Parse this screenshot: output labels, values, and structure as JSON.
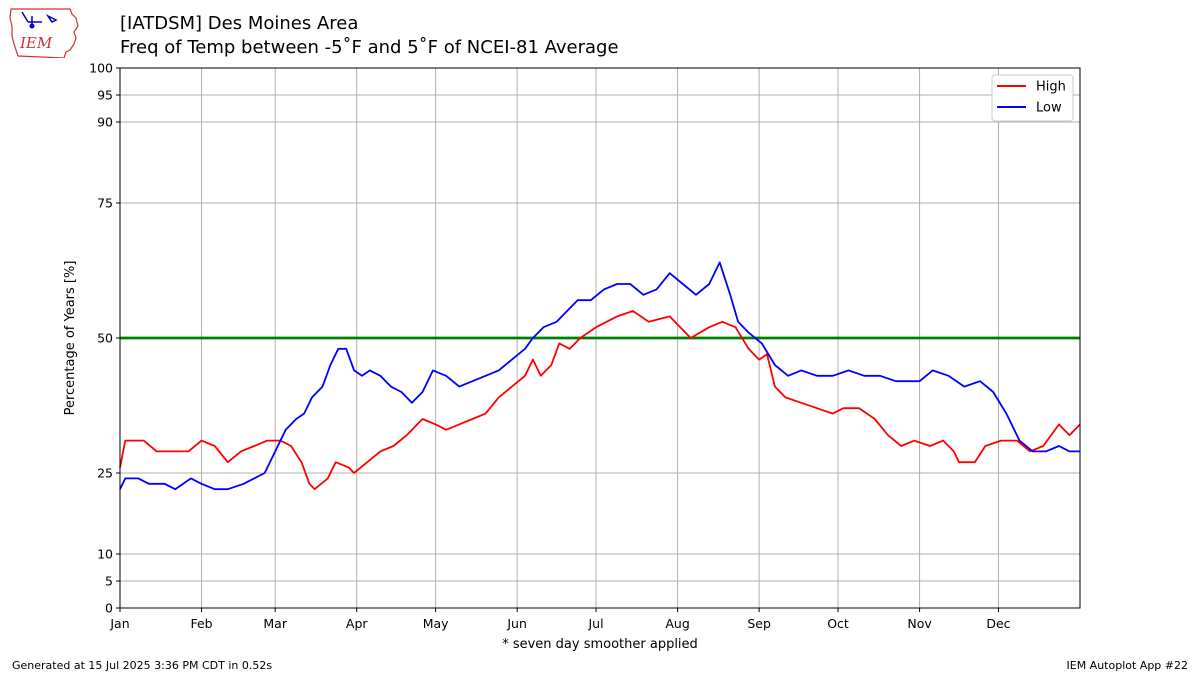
{
  "header": {
    "title_line1": "[IATDSM] Des Moines Area",
    "title_line2": "Freq of Temp between -5˚F and 5˚F of NCEI-81 Average",
    "logo_text": "IEM"
  },
  "footer": {
    "generated": "Generated at 15 Jul 2025 3:36 PM CDT in 0.52s",
    "app": "IEM Autoplot App #22"
  },
  "colors": {
    "high": "#ff0000",
    "low": "#0000ff",
    "reference": "#008000",
    "grid": "#b0b0b0"
  },
  "chart_data": {
    "type": "line",
    "title": "[IATDSM] Des Moines Area",
    "subtitle": "Freq of Temp between -5˚F and 5˚F of NCEI-81 Average",
    "xlabel": "* seven day smoother applied",
    "ylabel": "Percentage of Years [%]",
    "x_unit": "day of year",
    "xlim": [
      1,
      366
    ],
    "ylim": [
      0,
      100
    ],
    "yticks": [
      0,
      5,
      10,
      25,
      50,
      75,
      90,
      95,
      100
    ],
    "x_tick_labels": [
      "Jan",
      "Feb",
      "Mar",
      "Apr",
      "May",
      "Jun",
      "Jul",
      "Aug",
      "Sep",
      "Oct",
      "Nov",
      "Dec"
    ],
    "x_tick_days": [
      1,
      32,
      60,
      91,
      121,
      152,
      182,
      213,
      244,
      274,
      305,
      335
    ],
    "grid": true,
    "legend_position": "top-right",
    "reference_line": {
      "y": 50
    },
    "series": [
      {
        "name": "High",
        "color": "#ff0000",
        "points": [
          [
            1,
            26
          ],
          [
            3,
            31
          ],
          [
            10,
            31
          ],
          [
            15,
            29
          ],
          [
            22,
            29
          ],
          [
            27,
            29
          ],
          [
            32,
            31
          ],
          [
            37,
            30
          ],
          [
            42,
            27
          ],
          [
            47,
            29
          ],
          [
            52,
            30
          ],
          [
            57,
            31
          ],
          [
            62,
            31
          ],
          [
            66,
            30
          ],
          [
            70,
            27
          ],
          [
            73,
            23
          ],
          [
            75,
            22
          ],
          [
            80,
            24
          ],
          [
            83,
            27
          ],
          [
            88,
            26
          ],
          [
            90,
            25
          ],
          [
            95,
            27
          ],
          [
            100,
            29
          ],
          [
            105,
            30
          ],
          [
            110,
            32
          ],
          [
            116,
            35
          ],
          [
            121,
            34
          ],
          [
            125,
            33
          ],
          [
            130,
            34
          ],
          [
            135,
            35
          ],
          [
            140,
            36
          ],
          [
            145,
            39
          ],
          [
            150,
            41
          ],
          [
            155,
            43
          ],
          [
            158,
            46
          ],
          [
            161,
            43
          ],
          [
            165,
            45
          ],
          [
            168,
            49
          ],
          [
            172,
            48
          ],
          [
            176,
            50
          ],
          [
            182,
            52
          ],
          [
            190,
            54
          ],
          [
            196,
            55
          ],
          [
            202,
            53
          ],
          [
            210,
            54
          ],
          [
            214,
            52
          ],
          [
            218,
            50
          ],
          [
            225,
            52
          ],
          [
            230,
            53
          ],
          [
            235,
            52
          ],
          [
            240,
            48
          ],
          [
            244,
            46
          ],
          [
            247,
            47
          ],
          [
            250,
            41
          ],
          [
            254,
            39
          ],
          [
            260,
            38
          ],
          [
            266,
            37
          ],
          [
            272,
            36
          ],
          [
            276,
            37
          ],
          [
            282,
            37
          ],
          [
            288,
            35
          ],
          [
            293,
            32
          ],
          [
            298,
            30
          ],
          [
            303,
            31
          ],
          [
            309,
            30
          ],
          [
            314,
            31
          ],
          [
            318,
            29
          ],
          [
            320,
            27
          ],
          [
            326,
            27
          ],
          [
            330,
            30
          ],
          [
            336,
            31
          ],
          [
            342,
            31
          ],
          [
            347,
            29
          ],
          [
            352,
            30
          ],
          [
            358,
            34
          ],
          [
            362,
            32
          ],
          [
            366,
            34
          ]
        ]
      },
      {
        "name": "Low",
        "color": "#0000ff",
        "points": [
          [
            1,
            22
          ],
          [
            3,
            24
          ],
          [
            8,
            24
          ],
          [
            12,
            23
          ],
          [
            18,
            23
          ],
          [
            22,
            22
          ],
          [
            28,
            24
          ],
          [
            32,
            23
          ],
          [
            37,
            22
          ],
          [
            42,
            22
          ],
          [
            48,
            23
          ],
          [
            52,
            24
          ],
          [
            56,
            25
          ],
          [
            60,
            29
          ],
          [
            64,
            33
          ],
          [
            68,
            35
          ],
          [
            71,
            36
          ],
          [
            74,
            39
          ],
          [
            78,
            41
          ],
          [
            81,
            45
          ],
          [
            84,
            48
          ],
          [
            87,
            48
          ],
          [
            90,
            44
          ],
          [
            93,
            43
          ],
          [
            96,
            44
          ],
          [
            100,
            43
          ],
          [
            104,
            41
          ],
          [
            108,
            40
          ],
          [
            112,
            38
          ],
          [
            116,
            40
          ],
          [
            120,
            44
          ],
          [
            125,
            43
          ],
          [
            130,
            41
          ],
          [
            135,
            42
          ],
          [
            140,
            43
          ],
          [
            145,
            44
          ],
          [
            150,
            46
          ],
          [
            155,
            48
          ],
          [
            158,
            50
          ],
          [
            162,
            52
          ],
          [
            167,
            53
          ],
          [
            171,
            55
          ],
          [
            175,
            57
          ],
          [
            180,
            57
          ],
          [
            185,
            59
          ],
          [
            190,
            60
          ],
          [
            195,
            60
          ],
          [
            200,
            58
          ],
          [
            205,
            59
          ],
          [
            210,
            62
          ],
          [
            215,
            60
          ],
          [
            220,
            58
          ],
          [
            225,
            60
          ],
          [
            229,
            64
          ],
          [
            233,
            58
          ],
          [
            236,
            53
          ],
          [
            240,
            51
          ],
          [
            245,
            49
          ],
          [
            250,
            45
          ],
          [
            255,
            43
          ],
          [
            260,
            44
          ],
          [
            266,
            43
          ],
          [
            272,
            43
          ],
          [
            278,
            44
          ],
          [
            284,
            43
          ],
          [
            290,
            43
          ],
          [
            296,
            42
          ],
          [
            300,
            42
          ],
          [
            305,
            42
          ],
          [
            310,
            44
          ],
          [
            316,
            43
          ],
          [
            322,
            41
          ],
          [
            328,
            42
          ],
          [
            333,
            40
          ],
          [
            338,
            36
          ],
          [
            343,
            31
          ],
          [
            348,
            29
          ],
          [
            353,
            29
          ],
          [
            358,
            30
          ],
          [
            362,
            29
          ],
          [
            366,
            29
          ]
        ]
      }
    ]
  }
}
